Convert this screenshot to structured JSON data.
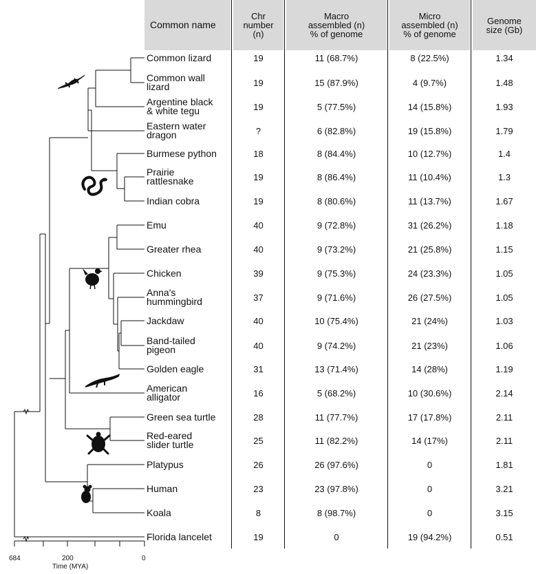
{
  "header": {
    "name": "Common name",
    "chr": [
      "Chr",
      "number",
      "(n)"
    ],
    "macro": [
      "Macro",
      "assembled (n)",
      "% of genome"
    ],
    "micro": [
      "Micro",
      "assembled (n)",
      "% of genome"
    ],
    "genome": [
      "Genome",
      "size (Gb)"
    ]
  },
  "rows": [
    {
      "name": [
        "Common lizard"
      ],
      "chr": "19",
      "macro": "11 (68.7%)",
      "micro": "8 (22.5%)",
      "genome": "1.34"
    },
    {
      "name": [
        "Common wall",
        "lizard"
      ],
      "chr": "19",
      "macro": "15 (87.9%)",
      "micro": "4 (9.7%)",
      "genome": "1.48"
    },
    {
      "name": [
        "Argentine black",
        "& white tegu"
      ],
      "chr": "19",
      "macro": "5 (77.5%)",
      "micro": "14 (15.8%)",
      "genome": "1.93"
    },
    {
      "name": [
        "Eastern water",
        "dragon"
      ],
      "chr": "?",
      "macro": "6 (82.8%)",
      "micro": "19 (15.8%)",
      "genome": "1.79"
    },
    {
      "name": [
        "Burmese python"
      ],
      "chr": "18",
      "macro": "8 (84.4%)",
      "micro": "10 (12.7%)",
      "genome": "1.4"
    },
    {
      "name": [
        "Prairie",
        "rattlesnake"
      ],
      "chr": "19",
      "macro": "8 (86.4%)",
      "micro": "11 (10.4%)",
      "genome": "1.3"
    },
    {
      "name": [
        "Indian cobra"
      ],
      "chr": "19",
      "macro": "8 (80.6%)",
      "micro": "11 (13.7%)",
      "genome": "1.67"
    },
    {
      "name": [
        "Emu"
      ],
      "chr": "40",
      "macro": "9 (72.8%)",
      "micro": "31 (26.2%)",
      "genome": "1.18"
    },
    {
      "name": [
        "Greater rhea"
      ],
      "chr": "40",
      "macro": "9 (73.2%)",
      "micro": "21 (25.8%)",
      "genome": "1.15"
    },
    {
      "name": [
        "Chicken"
      ],
      "chr": "39",
      "macro": "9 (75.3%)",
      "micro": "24 (23.3%)",
      "genome": "1.05"
    },
    {
      "name": [
        "Anna's",
        "hummingbird"
      ],
      "chr": "37",
      "macro": "9 (71.6%)",
      "micro": "26 (27.5%)",
      "genome": "1.05"
    },
    {
      "name": [
        "Jackdaw"
      ],
      "chr": "40",
      "macro": "10 (75.4%)",
      "micro": "21 (24%)",
      "genome": "1.03"
    },
    {
      "name": [
        "Band-tailed",
        "pigeon"
      ],
      "chr": "40",
      "macro": "9 (74.2%)",
      "micro": "21 (23%)",
      "genome": "1.06"
    },
    {
      "name": [
        "Golden eagle"
      ],
      "chr": "31",
      "macro": "13 (71.4%)",
      "micro": "14 (28%)",
      "genome": "1.19"
    },
    {
      "name": [
        "American",
        "alligator"
      ],
      "chr": "16",
      "macro": "5 (68.2%)",
      "micro": "10 (30.6%)",
      "genome": "2.14"
    },
    {
      "name": [
        "Green sea turtle"
      ],
      "chr": "28",
      "macro": "11 (77.7%)",
      "micro": "17 (17.8%)",
      "genome": "2.11"
    },
    {
      "name": [
        "Red-eared",
        "slider turtle"
      ],
      "chr": "25",
      "macro": "11 (82.2%)",
      "micro": "14 (17%)",
      "genome": "2.11"
    },
    {
      "name": [
        "Platypus"
      ],
      "chr": "26",
      "macro": "26 (97.6%)",
      "micro": "0",
      "genome": "1.81"
    },
    {
      "name": [
        "Human"
      ],
      "chr": "23",
      "macro": "23 (97.8%)",
      "micro": "0",
      "genome": "3.21"
    },
    {
      "name": [
        "Koala"
      ],
      "chr": "8",
      "macro": "8 (98.7%)",
      "micro": "0",
      "genome": "3.15"
    },
    {
      "name": [
        "Florida lancelet"
      ],
      "chr": "19",
      "macro": "0",
      "micro": "19 (94.2%)",
      "genome": "0.51"
    }
  ],
  "axis": {
    "ticks": [
      "684",
      "200",
      "0"
    ],
    "label": "Time (MYA)"
  },
  "silhouettes": [
    "lizard-icon",
    "snake-icon",
    "bird-icon",
    "crocodile-icon",
    "turtle-icon",
    "mammal-icon"
  ],
  "colors": {
    "header_bg": "#d9d9d9",
    "line": "#111111"
  }
}
